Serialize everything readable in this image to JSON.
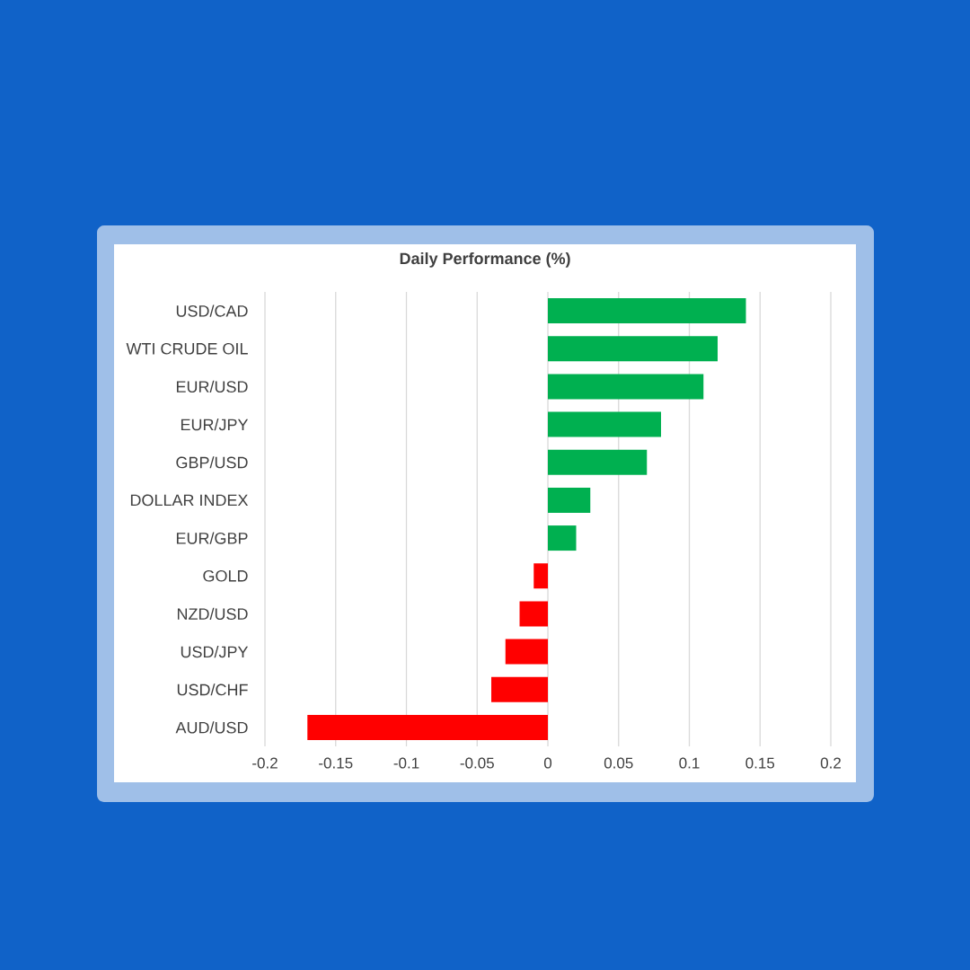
{
  "chart_data": {
    "type": "bar",
    "orientation": "horizontal",
    "title": "Daily Performance (%)",
    "categories": [
      "USD/CAD",
      "WTI CRUDE OIL",
      "EUR/USD",
      "EUR/JPY",
      "GBP/USD",
      "DOLLAR INDEX",
      "EUR/GBP",
      "GOLD",
      "NZD/USD",
      "USD/JPY",
      "USD/CHF",
      "AUD/USD"
    ],
    "values": [
      0.14,
      0.12,
      0.11,
      0.08,
      0.07,
      0.03,
      0.02,
      -0.01,
      -0.02,
      -0.03,
      -0.04,
      -0.17
    ],
    "colors": [
      "#00b050",
      "#00b050",
      "#00b050",
      "#00b050",
      "#00b050",
      "#00b050",
      "#00b050",
      "#ff0000",
      "#ff0000",
      "#ff0000",
      "#ff0000",
      "#ff0000"
    ],
    "xlim": [
      -0.2,
      0.2
    ],
    "xticks": [
      -0.2,
      -0.15,
      -0.1,
      -0.05,
      0,
      0.05,
      0.1,
      0.15,
      0.2
    ],
    "grid": "x"
  }
}
